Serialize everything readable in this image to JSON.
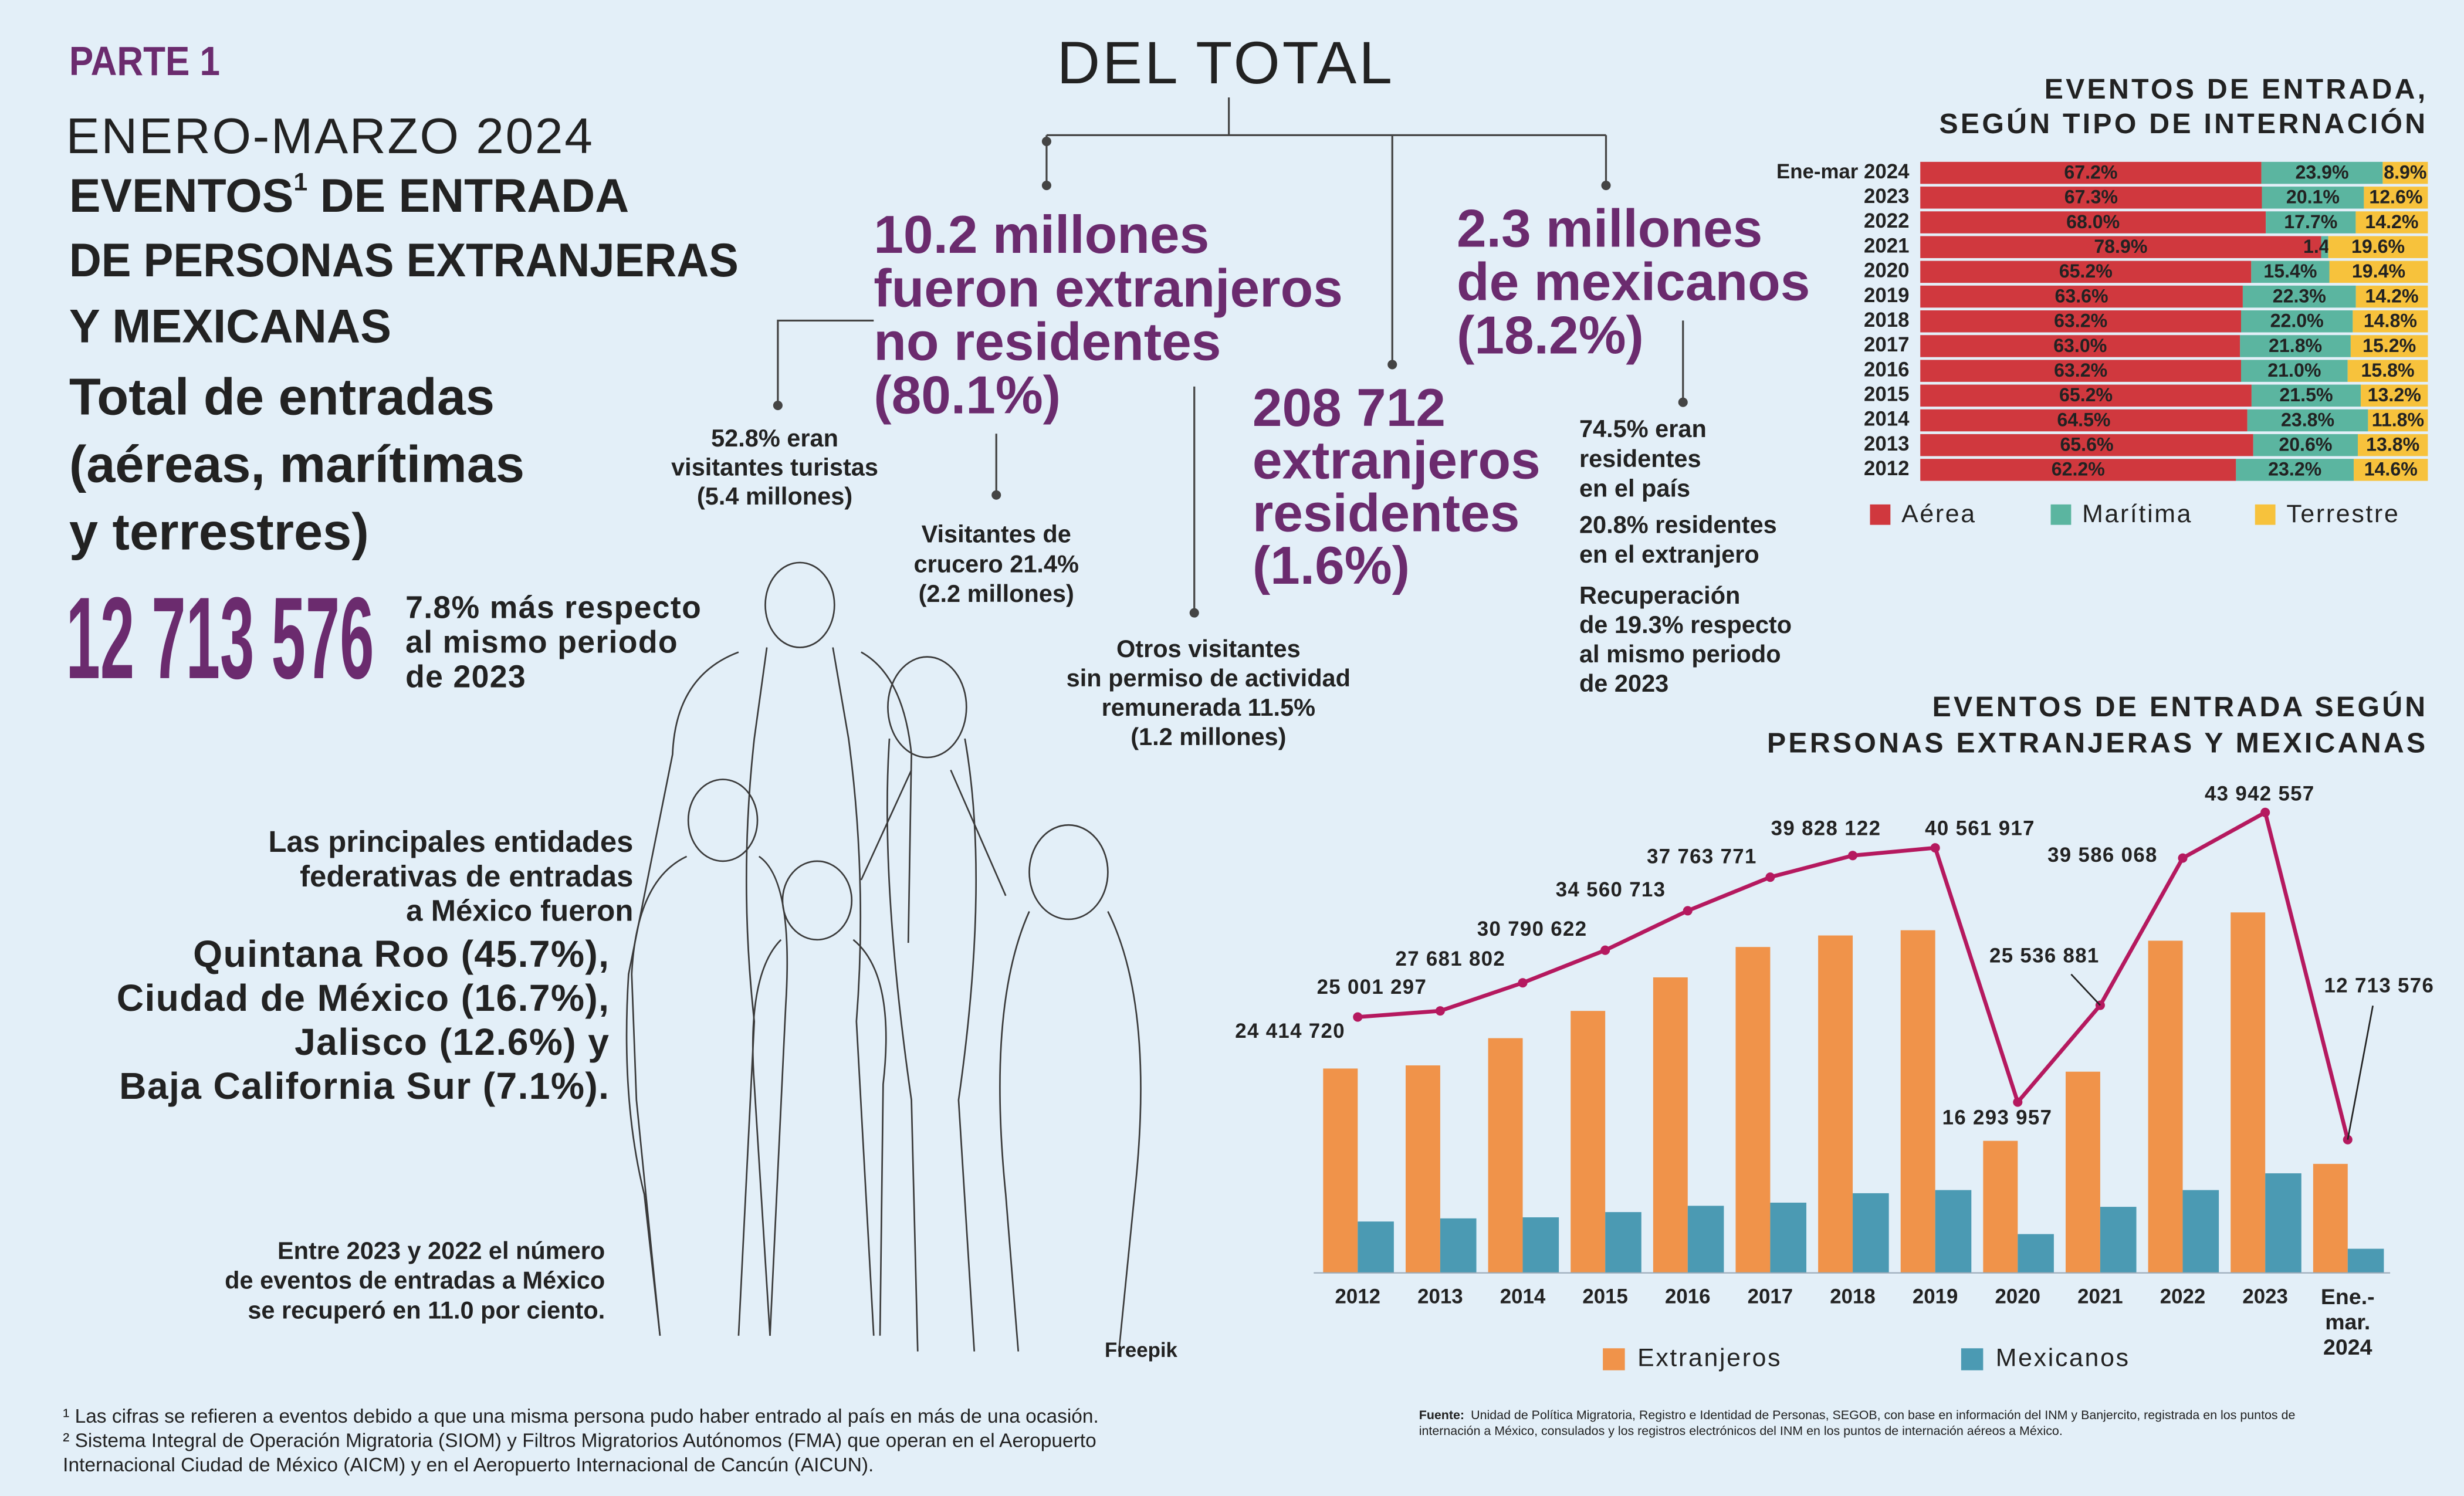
{
  "part": "PARTE 1",
  "period": "ENERO-MARZO 2024",
  "heading": {
    "first": "EVENTOS",
    "note_ref": "1",
    "first_rest": "DE ENTRADA",
    "lines": [
      "DE PERSONAS EXTRANJERAS",
      "Y MEXICANAS"
    ]
  },
  "subheading": [
    "Total de entradas",
    "(aéreas, marítimas",
    "y terrestres)"
  ],
  "total": "12 713 576",
  "growth": [
    "7.8% más respecto",
    "al mismo periodo",
    "de 2023"
  ],
  "del_total": "DEL TOTAL",
  "foreign": [
    "10.2 millones",
    "fueron extranjeros",
    "no residentes",
    "(80.1%)"
  ],
  "residents": [
    "208 712",
    "extranjeros",
    "residentes",
    "(1.6%)"
  ],
  "mexicans": [
    "2.3 millones",
    "de mexicanos",
    "(18.2%)"
  ],
  "tourists": [
    "52.8% eran",
    "visitantes turistas",
    "(5.4 millones)"
  ],
  "cruise": [
    "Visitantes de",
    "crucero 21.4%",
    "(2.2 millones)"
  ],
  "others": [
    "Otros visitantes",
    "sin permiso de actividad",
    "remunerada 11.5%",
    "(1.2 millones)"
  ],
  "mex_resident": [
    "74.5% eran",
    "residentes",
    "en el país"
  ],
  "mex_abroad": [
    "20.8% residentes",
    "en el extranjero"
  ],
  "mex_recovery": [
    "Recuperación",
    "de 19.3% respecto",
    "al mismo periodo",
    "de 2023"
  ],
  "entities_intro": [
    "Las principales entidades",
    "federativas de entradas",
    "a México fueron"
  ],
  "entities": [
    "Quintana Roo (45.7%),",
    "Ciudad de México (16.7%),",
    "Jalisco (12.6%) y",
    "Baja California Sur (7.1%)."
  ],
  "recovery": [
    "Entre 2023 y 2022 el número",
    "de eventos de entradas a México",
    "se recuperó en 11.0 por ciento."
  ],
  "credit": "Freepik",
  "footnotes": [
    "¹ Las cifras se refieren a eventos debido a que una misma persona pudo haber entrado al país en más de una ocasión.",
    "² Sistema Integral de Operación Migratoria (SIOM) y Filtros Migratorios Autónomos (FMA) que operan en el Aeropuerto",
    "Internacional Ciudad de México (AICM) y en el Aeropuerto Internacional de Cancún (AICUN)."
  ],
  "source": [
    "Fuente:",
    "Unidad de Política Migratoria, Registro e Identidad de Personas, SEGOB, con base en información del INM y Banjercito, registrada en los puntos de",
    "internación a México, consulados y los registros electrónicos del INM en los puntos de internación aéreos a México."
  ],
  "chart_data": [
    {
      "type": "bar",
      "orientation": "horizontal",
      "stacked": true,
      "title": [
        "EVENTOS DE ENTRADA,",
        "SEGÚN TIPO DE INTERNACIÓN"
      ],
      "categories": [
        "Ene-mar 2024",
        "2023",
        "2022",
        "2021",
        "2020",
        "2019",
        "2018",
        "2017",
        "2016",
        "2015",
        "2014",
        "2013",
        "2012"
      ],
      "series": [
        {
          "name": "Aérea",
          "color": "#d0383e",
          "values": [
            67.2,
            67.3,
            68.0,
            78.9,
            65.2,
            63.6,
            63.2,
            63.0,
            63.2,
            65.2,
            64.5,
            65.6,
            62.2
          ],
          "value_labels": [
            "67.2%",
            "67.3%",
            "68.0%",
            "78.9%",
            "65.2%",
            "63.6%",
            "63.2%",
            "63.0%",
            "63.2%",
            "65.2%",
            "64.5%",
            "65.6%",
            "62.2%"
          ]
        },
        {
          "name": "Marítima",
          "color": "#5bb5a0",
          "values": [
            23.9,
            20.1,
            17.7,
            1.4,
            15.4,
            22.3,
            22.0,
            21.8,
            21.0,
            21.5,
            23.8,
            20.6,
            23.2
          ],
          "value_labels": [
            "23.9%",
            "20.1%",
            "17.7%",
            "1.4%",
            "15.4%",
            "22.3%",
            "22.0%",
            "21.8%",
            "21.0%",
            "21.5%",
            "23.8%",
            "20.6%",
            "23.2%"
          ]
        },
        {
          "name": "Terrestre",
          "color": "#f7c23c",
          "values": [
            8.9,
            12.6,
            14.2,
            19.6,
            19.4,
            14.2,
            14.8,
            15.2,
            15.8,
            13.2,
            11.8,
            13.8,
            14.6
          ],
          "value_labels": [
            "8.9%",
            "12.6%",
            "14.2%",
            "19.6%",
            "19.4%",
            "14.2%",
            "14.8%",
            "15.2%",
            "15.8%",
            "13.2%",
            "11.8%",
            "13.8%",
            "14.6%"
          ]
        }
      ]
    },
    {
      "type": "combo",
      "title": [
        "EVENTOS DE ENTRADA SEGÚN",
        "PERSONAS EXTRANJERAS Y MEXICANAS"
      ],
      "categories": [
        "2012",
        "2013",
        "2014",
        "2015",
        "2016",
        "2017",
        "2018",
        "2019",
        "2020",
        "2021",
        "2022",
        "2023",
        "Ene.-mar. 2024"
      ],
      "series": [
        {
          "name": "Extranjeros",
          "color": "#f0934a",
          "values": [
            19500000,
            19800000,
            22400000,
            25000000,
            28200000,
            31100000,
            32200000,
            32700000,
            12600000,
            19200000,
            31700000,
            34400000,
            10400000
          ]
        },
        {
          "name": "Mexicanos",
          "color": "#4b9ab3",
          "values": [
            4900000,
            5200000,
            5300000,
            5800000,
            6400000,
            6700000,
            7600000,
            7900000,
            3700000,
            6300000,
            7900000,
            9500000,
            2300000
          ]
        }
      ],
      "line": {
        "color": "#b5195f",
        "values": [
          24414720,
          25001297,
          27681802,
          30790622,
          34560713,
          37763771,
          39828122,
          40561917,
          16293957,
          25536881,
          39586068,
          43942557,
          12713576
        ],
        "value_labels": [
          "24 414 720",
          "25 001 297",
          "27 681 802",
          "30 790 622",
          "34 560 713",
          "37 763 771",
          "39 828 122",
          "40 561 917",
          "16 293 957",
          "25 536 881",
          "39 586 068",
          "43 942 557",
          "12 713 576"
        ]
      }
    }
  ]
}
